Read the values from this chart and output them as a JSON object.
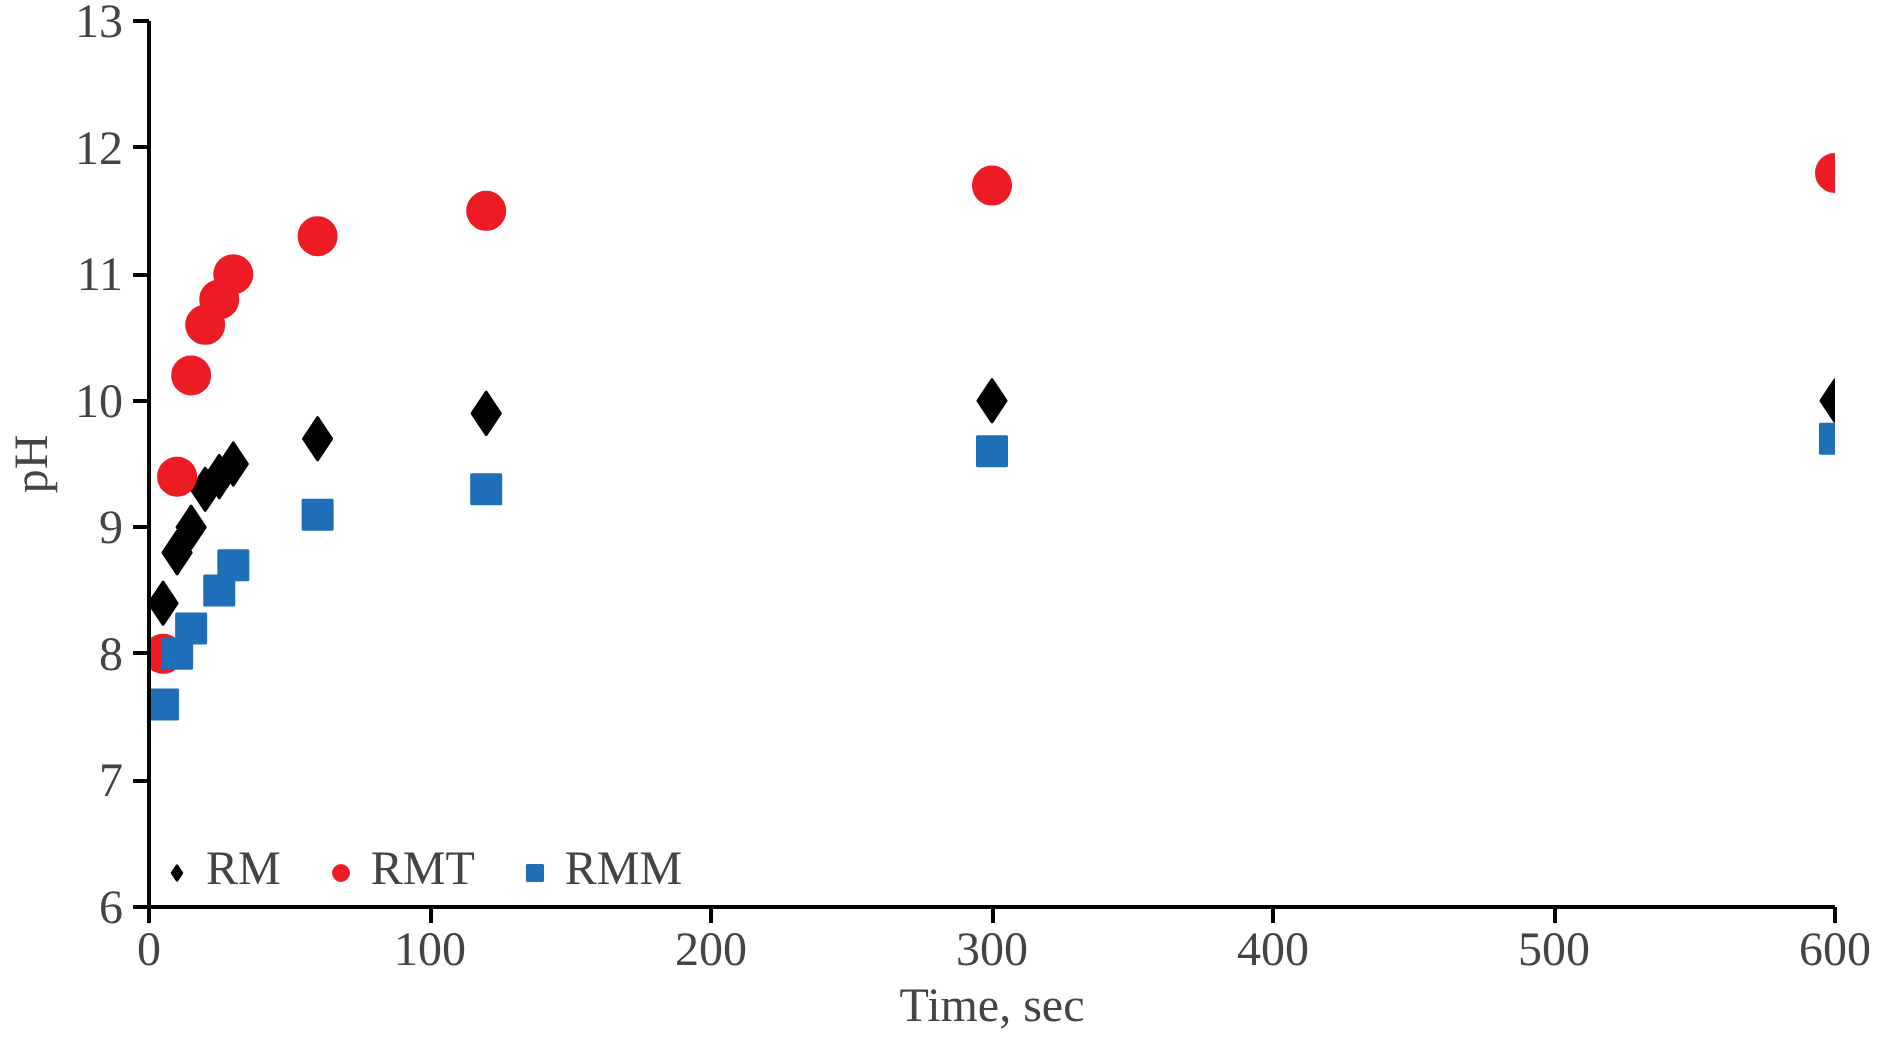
{
  "chart_data": {
    "type": "scatter",
    "xlabel": "Time, sec",
    "ylabel": "pH",
    "xlim": [
      0,
      600
    ],
    "xticks": [
      0,
      100,
      200,
      300,
      400,
      500,
      600
    ],
    "ylim": [
      6,
      13
    ],
    "yticks": [
      6,
      7,
      8,
      9,
      10,
      11,
      12,
      13
    ],
    "grid": false,
    "legend": "bottom left",
    "series": [
      {
        "name": "RM",
        "color": "#000000",
        "marker": "diamond",
        "x": [
          5,
          10,
          15,
          20,
          25,
          30,
          60,
          120,
          300,
          600
        ],
        "values": [
          8.4,
          8.8,
          9.0,
          9.3,
          9.4,
          9.5,
          9.7,
          9.9,
          10.0,
          10.0
        ]
      },
      {
        "name": "RMT",
        "color": "#ed1c24",
        "marker": "circle",
        "x": [
          5,
          10,
          15,
          20,
          25,
          30,
          60,
          120,
          300,
          600
        ],
        "values": [
          8.0,
          9.4,
          10.2,
          10.6,
          10.8,
          11.0,
          11.3,
          11.5,
          11.7,
          11.8
        ]
      },
      {
        "name": "RMM",
        "color": "#1f6fb8",
        "marker": "square",
        "x": [
          5,
          10,
          15,
          25,
          30,
          60,
          120,
          300,
          600
        ],
        "values": [
          7.6,
          8.0,
          8.2,
          8.5,
          8.7,
          9.1,
          9.3,
          9.6,
          9.7
        ]
      }
    ]
  }
}
